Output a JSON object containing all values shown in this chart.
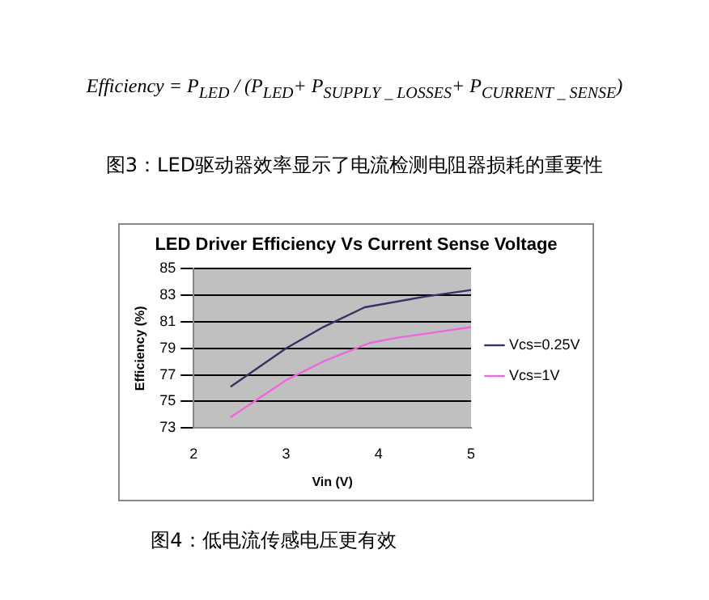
{
  "chart_data": {
    "type": "line",
    "title": "LED Driver Efficiency Vs Current Sense Voltage",
    "xlabel": "Vin (V)",
    "ylabel": "Efficiency (%)",
    "annotations": [
      "Efficiency = P$_{LED}$ / (P$_{LED}$+ P$_{SUPPLY _ LOSSES}$+ P$_{CURRENT _ SENSE}$)",
      "图3：LED驱动器效率显示了电流检测电阻器损耗的重要性",
      "图4：低电流传感电压更有效"
    ],
    "series": [
      {
        "name": "Vcs=0.25V",
        "color": "#333366",
        "x": [
          2.4,
          3,
          3.4,
          3.85,
          4.5,
          5
        ],
        "values": [
          76.1,
          79,
          80.6,
          82.1,
          82.9,
          83.4
        ]
      },
      {
        "name": "Vcs=1V",
        "color": "#ee66dd",
        "x": [
          2.4,
          3,
          3.4,
          3.9,
          4.2,
          4.6,
          5
        ],
        "values": [
          73.8,
          76.6,
          78,
          79.4,
          79.8,
          80.2,
          80.6
        ]
      }
    ],
    "xlim": [
      2,
      5
    ],
    "xticks": [
      2,
      3,
      4,
      5
    ],
    "ylim": [
      73,
      85
    ],
    "yticks": [
      73,
      75,
      77,
      79,
      81,
      83,
      85
    ],
    "grid": "y",
    "legend": "right",
    "marker": "none",
    "line_style": "solid"
  }
}
